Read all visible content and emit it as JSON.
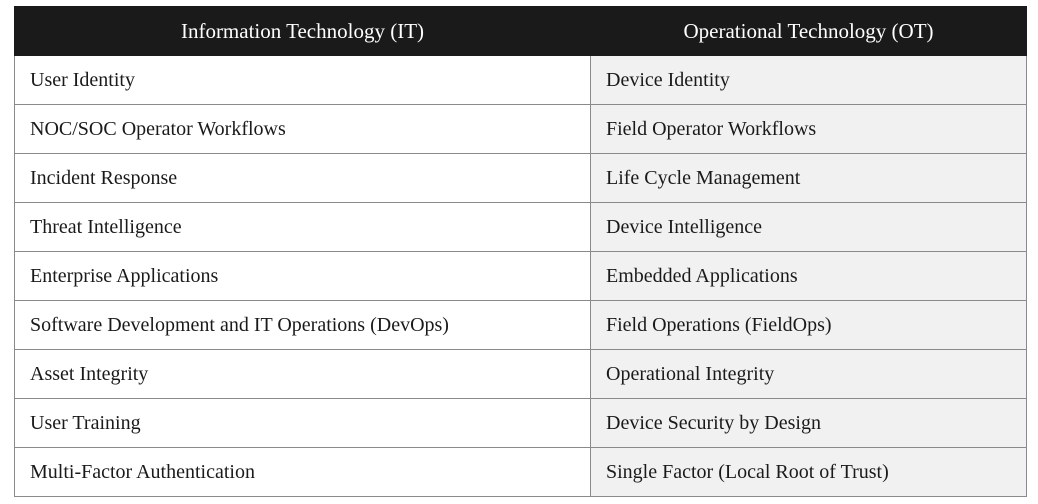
{
  "table": {
    "headers": {
      "it": "Information Technology (IT)",
      "ot": "Operational Technology (OT)"
    },
    "rows": [
      {
        "it": "User Identity",
        "ot": "Device Identity"
      },
      {
        "it": "NOC/SOC Operator Workflows",
        "ot": "Field Operator Workflows"
      },
      {
        "it": "Incident Response",
        "ot": "Life Cycle Management"
      },
      {
        "it": "Threat Intelligence",
        "ot": "Device Intelligence"
      },
      {
        "it": "Enterprise Applications",
        "ot": "Embedded Applications"
      },
      {
        "it": "Software Development and IT Operations (DevOps)",
        "ot": "Field Operations (FieldOps)"
      },
      {
        "it": "Asset Integrity",
        "ot": "Operational Integrity"
      },
      {
        "it": "User Training",
        "ot": "Device Security by Design"
      },
      {
        "it": "Multi-Factor Authentication",
        "ot": "Single Factor (Local Root of Trust)"
      }
    ]
  },
  "colors": {
    "header_bg": "#1a1a1a",
    "header_text": "#ffffff",
    "ot_column_bg": "#f1f1f1",
    "grid_line": "#8a8a8a"
  }
}
